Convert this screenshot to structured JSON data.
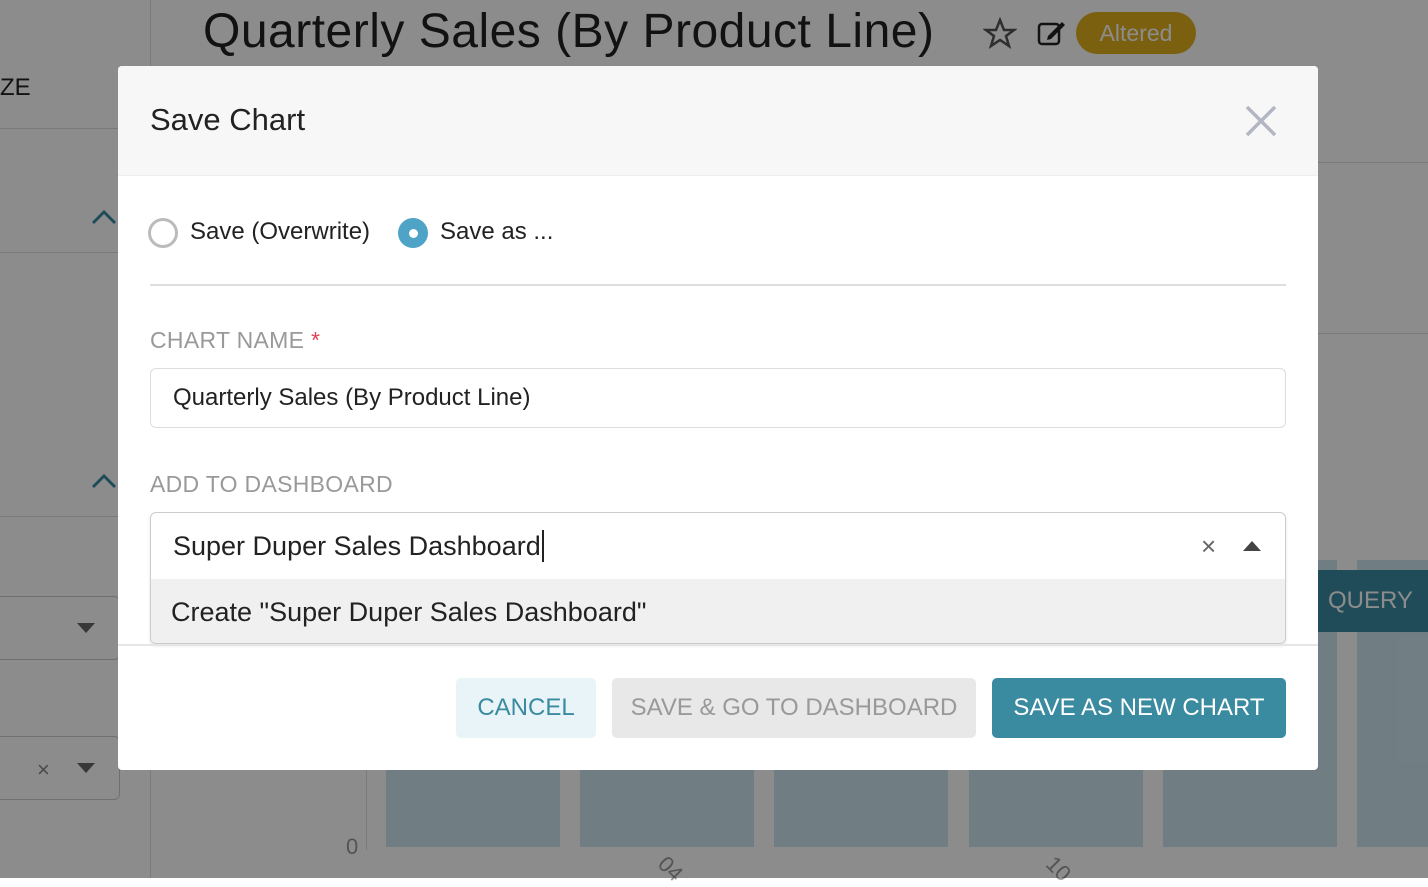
{
  "header": {
    "title": "Quarterly Sales (By Product Line)",
    "badge": "Altered",
    "icons": [
      "star-icon",
      "edit-icon"
    ]
  },
  "sidebar": {
    "partial_label": "ZE"
  },
  "background": {
    "query_button": "QUERY",
    "axis_zero": "0",
    "x_ticks": [
      "04",
      "10"
    ]
  },
  "modal": {
    "title": "Save Chart",
    "radio_options": [
      {
        "label": "Save (Overwrite)",
        "selected": false
      },
      {
        "label": "Save as ...",
        "selected": true
      }
    ],
    "chart_name_label": "CHART NAME",
    "required_mark": "*",
    "chart_name_value": "Quarterly Sales (By Product Line)",
    "dashboard_label": "ADD TO DASHBOARD",
    "dashboard_value": "Super Duper Sales Dashboard",
    "dropdown_option": "Create \"Super Duper Sales Dashboard\"",
    "buttons": {
      "cancel": "CANCEL",
      "save_go": "SAVE & GO TO DASHBOARD",
      "save_new": "SAVE AS NEW CHART"
    },
    "colors": {
      "primary": "#3a8aa0",
      "required": "#e04355"
    }
  }
}
